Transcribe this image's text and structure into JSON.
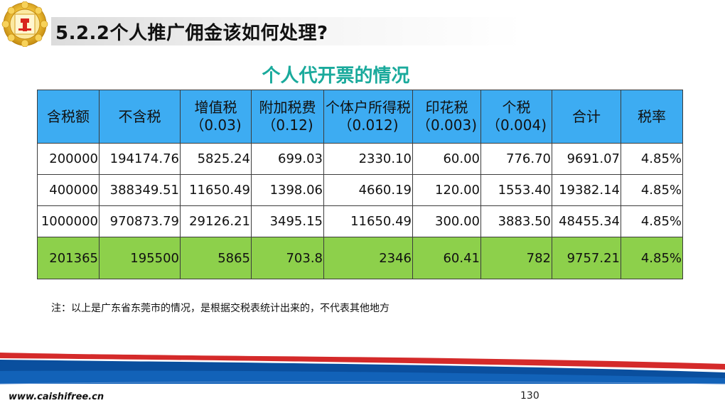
{
  "header": {
    "title": "5.2.2个人推广佣金该如何处理?"
  },
  "subtitle": "个人代开票的情况",
  "table": {
    "headers": [
      "含税额",
      "不含税",
      "增值税（0.03)",
      "附加税费（0.12)",
      "个体户所得税（0.012)",
      "印花税（0.003)",
      "个税（0.004)",
      "合计",
      "税率"
    ],
    "rows": [
      [
        "200000",
        "194174.76",
        "5825.24",
        "699.03",
        "2330.10",
        "60.00",
        "776.70",
        "9691.07",
        "4.85%"
      ],
      [
        "400000",
        "388349.51",
        "11650.49",
        "1398.06",
        "4660.19",
        "120.00",
        "1553.40",
        "19382.14",
        "4.85%"
      ],
      [
        "1000000",
        "970873.79",
        "29126.21",
        "3495.15",
        "11650.49",
        "300.00",
        "3883.50",
        "48455.34",
        "4.85%"
      ],
      [
        "201365",
        "195500",
        "5865",
        "703.8",
        "2346",
        "60.41",
        "782",
        "9757.21",
        "4.85%"
      ]
    ]
  },
  "note": "注：以上是广东省东莞市的情况，是根据交税表统计出来的，不代表其他地方",
  "footer": {
    "url": "www.caishifree.cn",
    "page_number": "130"
  },
  "colors": {
    "header_fill": "#3dacf2",
    "total_row_fill": "#8dd04b",
    "subtitle": "#1aaa9c",
    "footer_blue": "#0a4f9e",
    "footer_red": "#d42a2a"
  }
}
